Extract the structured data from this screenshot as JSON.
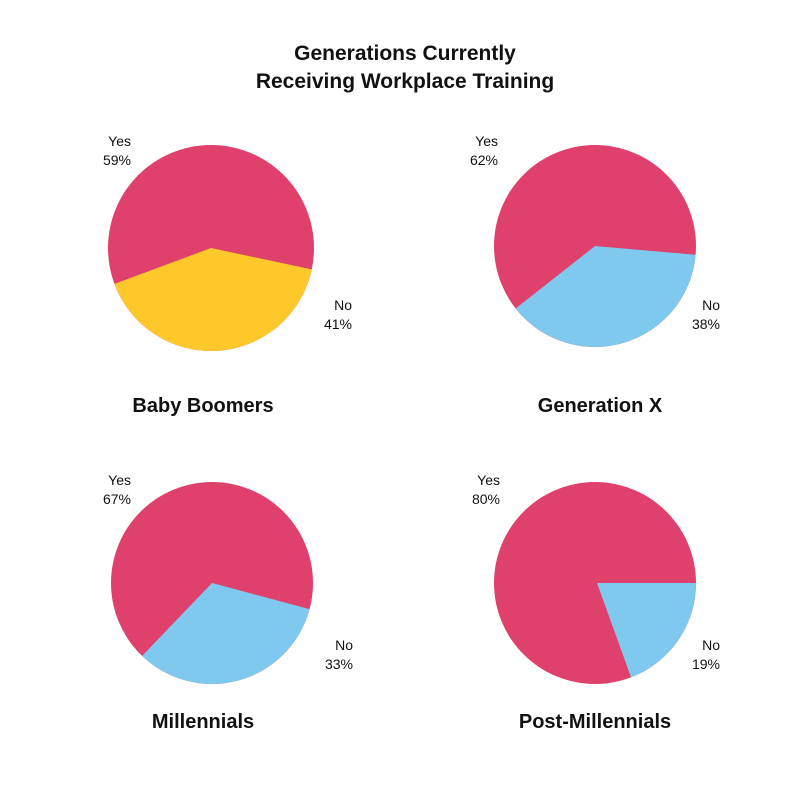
{
  "title_lines": [
    "Generations Currently",
    "Receiving Workplace Training"
  ],
  "chart_data": [
    {
      "type": "pie",
      "title": "Baby Boomers",
      "slices": [
        {
          "label": "Yes",
          "value": 59,
          "value_label": "59%",
          "color": "#e0406c"
        },
        {
          "label": "No",
          "value": 41,
          "value_label": "41%",
          "color": "#fec72a"
        }
      ]
    },
    {
      "type": "pie",
      "title": "Generation X",
      "slices": [
        {
          "label": "Yes",
          "value": 62,
          "value_label": "62%",
          "color": "#e0406c"
        },
        {
          "label": "No",
          "value": 38,
          "value_label": "38%",
          "color": "#7fc8ee"
        }
      ]
    },
    {
      "type": "pie",
      "title": "Millennials",
      "slices": [
        {
          "label": "Yes",
          "value": 67,
          "value_label": "67%",
          "color": "#e0406c"
        },
        {
          "label": "No",
          "value": 33,
          "value_label": "33%",
          "color": "#7fc8ee"
        }
      ]
    },
    {
      "type": "pie",
      "title": "Post-Millennials",
      "slices": [
        {
          "label": "Yes",
          "value": 80,
          "value_label": "80%",
          "color": "#e0406c"
        },
        {
          "label": "No",
          "value": 19,
          "value_label": "19%",
          "color": "#7fc8ee"
        }
      ]
    }
  ]
}
